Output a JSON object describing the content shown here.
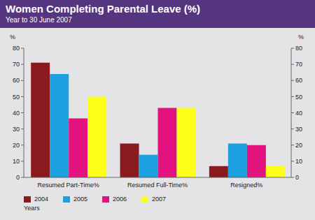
{
  "chart_data": {
    "type": "bar",
    "title": "Women Completing Parental Leave (%)",
    "subtitle": "Year to 30 June 2007",
    "categories": [
      "Resumed Part-Time%",
      "Resumed Full-Time%",
      "Resigned%"
    ],
    "series": [
      {
        "name": "2004",
        "color": "#8b1a1f",
        "values": [
          71,
          21,
          7
        ]
      },
      {
        "name": "2005",
        "color": "#1ba1e2",
        "values": [
          64,
          14,
          21
        ]
      },
      {
        "name": "2006",
        "color": "#e2127f",
        "values": [
          36.5,
          43,
          20
        ]
      },
      {
        "name": "2007",
        "color": "#ffff1a",
        "values": [
          50,
          43,
          7
        ]
      }
    ],
    "ylabel": "%",
    "y2label": "%",
    "ylim": [
      0,
      80
    ],
    "yticks": [
      0,
      10,
      20,
      30,
      40,
      50,
      60,
      70,
      80
    ],
    "y2lim": [
      0,
      80
    ],
    "y2ticks": [
      0,
      10,
      20,
      30,
      40,
      50,
      60,
      70,
      80
    ],
    "legend": "bottom",
    "legend_title": "Years",
    "grid": false
  }
}
